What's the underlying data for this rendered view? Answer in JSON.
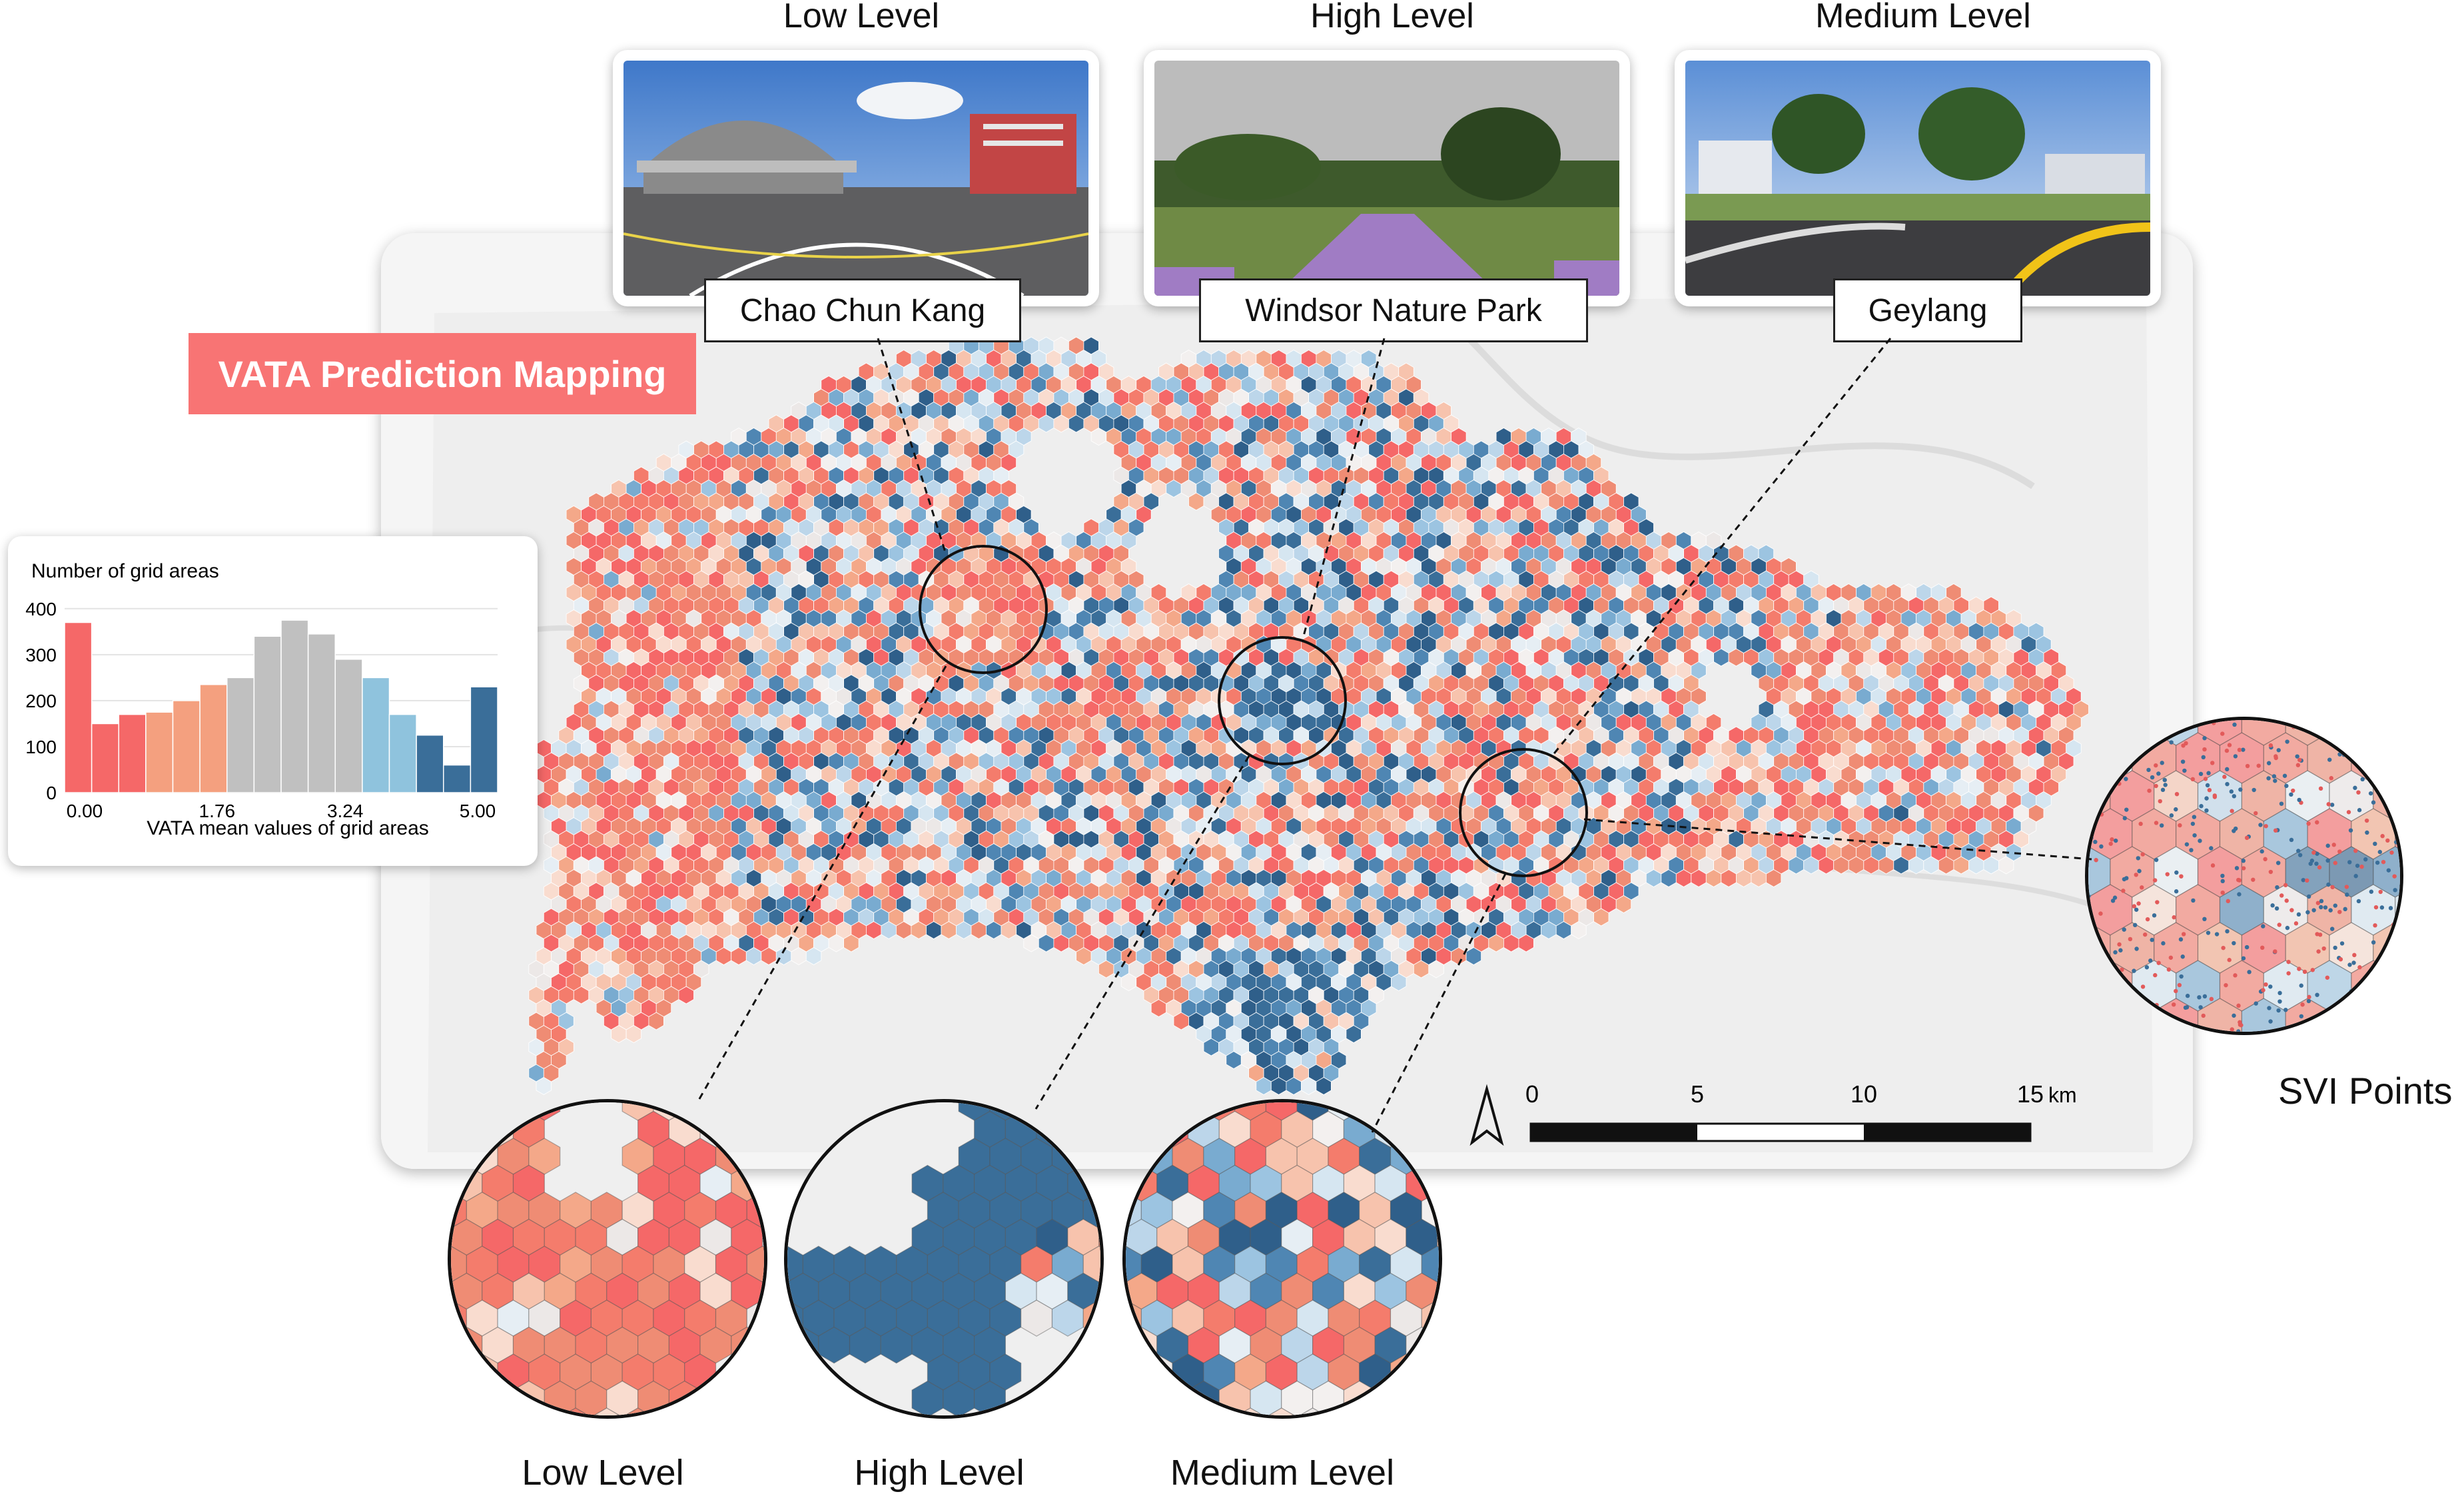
{
  "title": "VATA Prediction Mapping",
  "colors": {
    "low": "#f56868",
    "low_mid": "#f4a07f",
    "mid": "#c8c8c8",
    "high_mid": "#8fc3dd",
    "high": "#3a6e99",
    "title_bg": "#f87474"
  },
  "histogram": {
    "ylabel": "Number of grid areas",
    "xlabel": "VATA mean values of grid areas",
    "y_ticks": [
      "0",
      "100",
      "200",
      "300",
      "400"
    ],
    "x_ticks": [
      "0.00",
      "1.76",
      "3.24",
      "5.00"
    ],
    "ylim": [
      0,
      420
    ]
  },
  "chart_data": {
    "type": "bar",
    "title": "",
    "xlabel": "VATA mean values of grid areas",
    "ylabel": "Number of grid areas",
    "x_ticks": [
      0.0,
      1.76,
      3.24,
      5.0
    ],
    "ylim": [
      0,
      420
    ],
    "values": [
      370,
      150,
      170,
      175,
      200,
      235,
      250,
      340,
      375,
      345,
      290,
      250,
      170,
      125,
      60,
      230
    ],
    "colors": [
      "#f56868",
      "#f56868",
      "#f56868",
      "#f4a07f",
      "#f4a07f",
      "#f4a07f",
      "#c0c0c0",
      "#c0c0c0",
      "#c0c0c0",
      "#c0c0c0",
      "#c0c0c0",
      "#8fc3dd",
      "#8fc3dd",
      "#3a6e99",
      "#3a6e99",
      "#3a6e99"
    ]
  },
  "svi_photos": [
    {
      "heading": "Low Level",
      "location": "Chao Chun Kang",
      "scene": "elevated-viaduct-street"
    },
    {
      "heading": "High Level",
      "location": "Windsor Nature Park",
      "scene": "park-trail"
    },
    {
      "heading": "Medium Level",
      "location": "Geylang",
      "scene": "urban-junction"
    }
  ],
  "zoom_labels": [
    "Low Level",
    "High Level",
    "Medium Level"
  ],
  "svi_points_label": "SVI Points",
  "scale_bar": {
    "ticks": [
      "0",
      "5",
      "10",
      "15"
    ],
    "unit": "km"
  }
}
